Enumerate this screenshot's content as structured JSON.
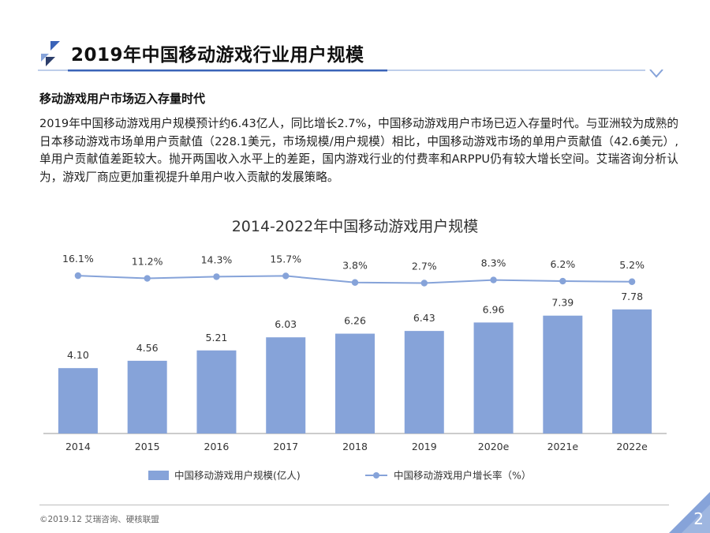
{
  "header": {
    "title": "2019年中国移动游戏行业用户规模"
  },
  "section": {
    "heading": "移动游戏用户市场迈入存量时代",
    "paragraph": "2019年中国移动游戏用户规模预计约6.43亿人，同比增长2.7%，中国移动游戏用户市场已迈入存量时代。与亚洲较为成熟的日本移动游戏市场单用户贡献值（228.1美元，市场规模/用户规模）相比，中国移动游戏市场的单用户贡献值（42.6美元）,单用户贡献值差距较大。抛开两国收入水平上的差距，国内游戏行业的付费率和ARPPU仍有较大增长空间。艾瑞咨询分析认为，游戏厂商应更加重视提升单用户收入贡献的发展策略。"
  },
  "chart_data": {
    "type": "bar",
    "title": "2014-2022年中国移动游戏用户规模",
    "categories": [
      "2014",
      "2015",
      "2016",
      "2017",
      "2018",
      "2019",
      "2020e",
      "2021e",
      "2022e"
    ],
    "series": [
      {
        "name": "中国移动游戏用户规模(亿人)",
        "type": "bar",
        "values": [
          4.1,
          4.56,
          5.21,
          6.03,
          6.26,
          6.43,
          6.96,
          7.39,
          7.78
        ],
        "labels": [
          "4.10",
          "4.56",
          "5.21",
          "6.03",
          "6.26",
          "6.43",
          "6.96",
          "7.39",
          "7.78"
        ],
        "color": "#86a3d9"
      },
      {
        "name": "中国移动游戏用户增长率（%）",
        "type": "line",
        "values": [
          16.1,
          11.2,
          14.3,
          15.7,
          3.8,
          2.7,
          8.3,
          6.2,
          5.2
        ],
        "labels": [
          "16.1%",
          "11.2%",
          "14.3%",
          "15.7%",
          "3.8%",
          "2.7%",
          "8.3%",
          "6.2%",
          "5.2%"
        ],
        "color": "#86a3d9"
      }
    ],
    "legend_position": "bottom",
    "grid": false
  },
  "footer": {
    "source": "©2019.12  艾瑞咨询、硬核联盟",
    "page_number": "2"
  },
  "colors": {
    "accent": "#86a3d9",
    "rule": "#a8bde3",
    "dark_accent": "#2c3e6b"
  }
}
